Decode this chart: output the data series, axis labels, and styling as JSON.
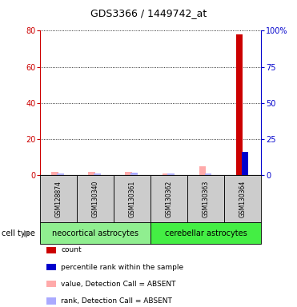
{
  "title": "GDS3366 / 1449742_at",
  "samples": [
    "GSM128874",
    "GSM130340",
    "GSM130361",
    "GSM130362",
    "GSM130363",
    "GSM130364"
  ],
  "groups": [
    {
      "label": "neocortical astrocytes",
      "samples": [
        0,
        1,
        2
      ],
      "color": "#90ee90"
    },
    {
      "label": "cerebellar astrocytes",
      "samples": [
        3,
        4,
        5
      ],
      "color": "#44ee44"
    }
  ],
  "count_values": [
    0,
    0,
    0,
    0,
    0,
    78
  ],
  "percentile_values": [
    0,
    0,
    0,
    0,
    0,
    16
  ],
  "absent_value_values": [
    1.5,
    1.5,
    1.5,
    1.0,
    5.0,
    0
  ],
  "absent_rank_values": [
    1.0,
    1.2,
    1.5,
    1.0,
    1.2,
    0
  ],
  "ylim_left": [
    0,
    80
  ],
  "ylim_right": [
    0,
    100
  ],
  "yticks_left": [
    0,
    20,
    40,
    60,
    80
  ],
  "yticks_right": [
    0,
    25,
    50,
    75,
    100
  ],
  "ytick_labels_right": [
    "0",
    "25",
    "50",
    "75",
    "100%"
  ],
  "left_axis_color": "#cc0000",
  "right_axis_color": "#0000cc",
  "count_color": "#cc0000",
  "percentile_color": "#0000cc",
  "absent_value_color": "#ffaaaa",
  "absent_rank_color": "#aaaaff",
  "sample_box_color": "#cccccc",
  "legend_items": [
    {
      "color": "#cc0000",
      "label": "count"
    },
    {
      "color": "#0000cc",
      "label": "percentile rank within the sample"
    },
    {
      "color": "#ffaaaa",
      "label": "value, Detection Call = ABSENT"
    },
    {
      "color": "#aaaaff",
      "label": "rank, Detection Call = ABSENT"
    }
  ]
}
